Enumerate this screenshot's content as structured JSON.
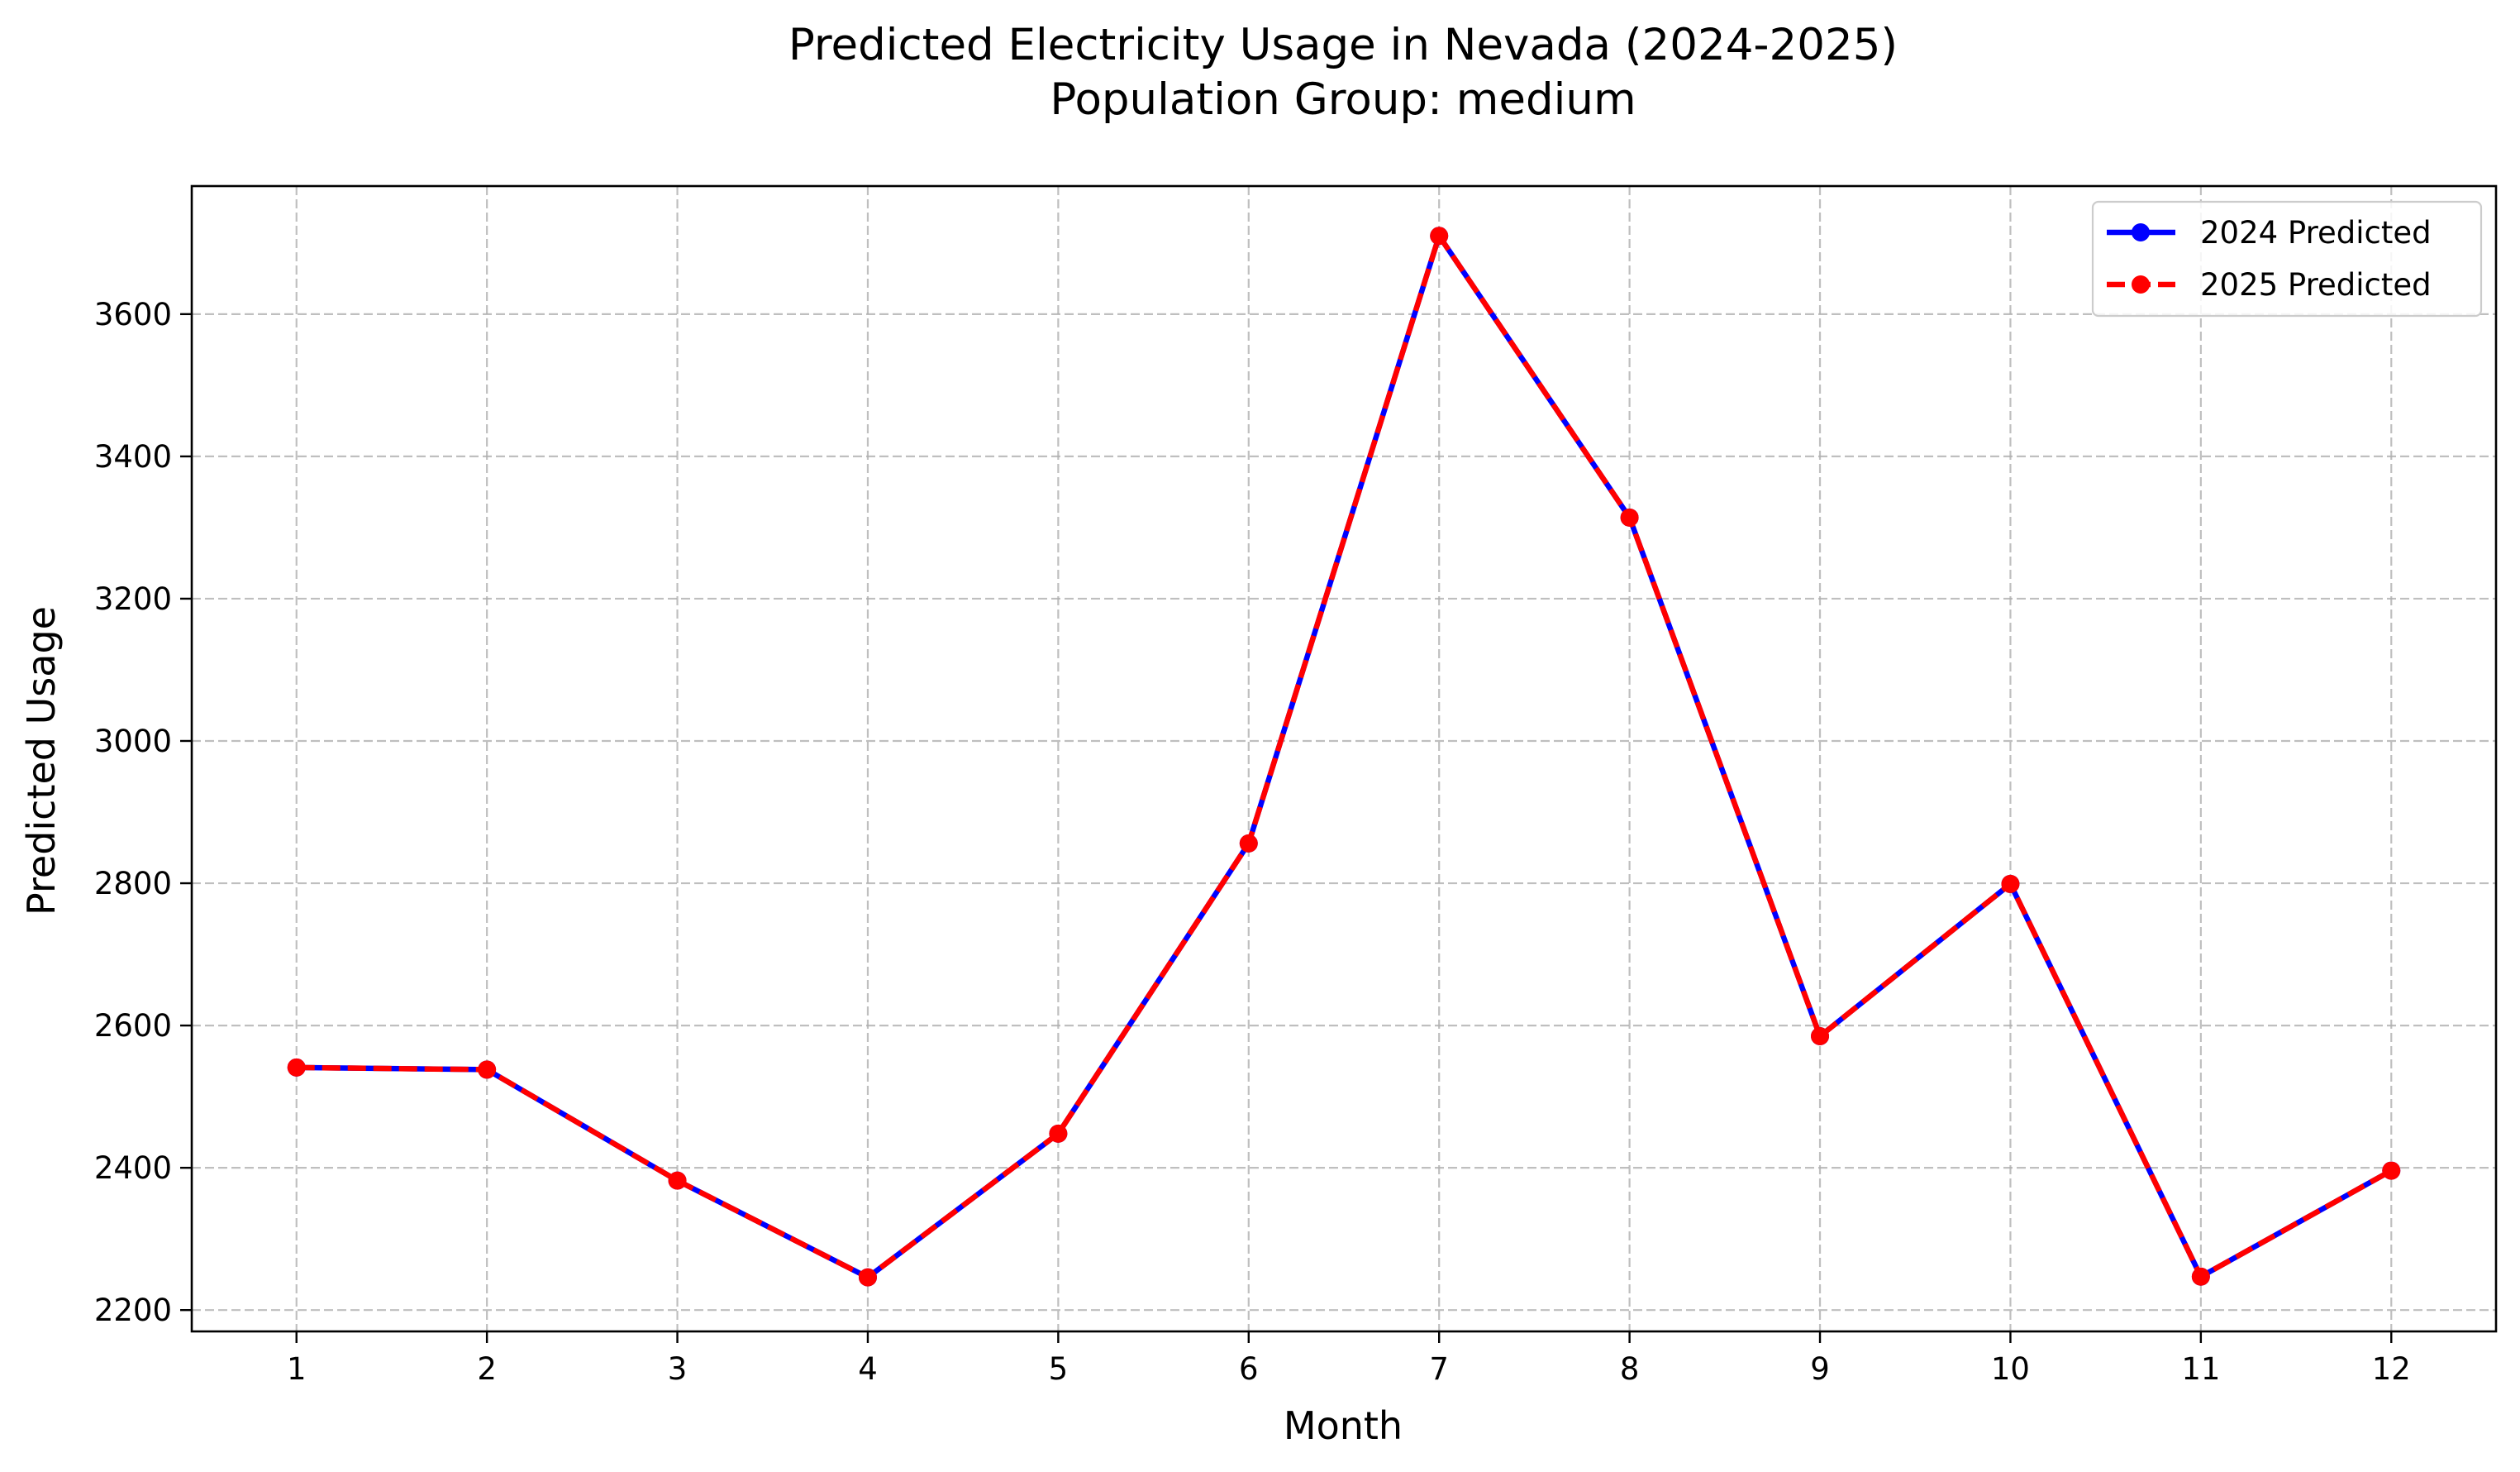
{
  "chart_data": {
    "type": "line",
    "title": "Predicted Electricity Usage in Nevada (2024-2025)",
    "subtitle": "Population Group: medium",
    "xlabel": "Month",
    "ylabel": "Predicted Usage",
    "x": [
      1,
      2,
      3,
      4,
      5,
      6,
      7,
      8,
      9,
      10,
      11,
      12
    ],
    "xlim": [
      0.45,
      12.55
    ],
    "ylim": [
      2170,
      3780
    ],
    "yticks": [
      2200,
      2400,
      2600,
      2800,
      3000,
      3200,
      3400,
      3600
    ],
    "grid": true,
    "grid_style": "dashed",
    "legend_position": "top-right",
    "series": [
      {
        "name": "2024 Predicted",
        "color": "#0000ff",
        "line_style": "solid",
        "marker": "circle",
        "values": [
          2541,
          2538,
          2382,
          2246,
          2448,
          2856,
          3710,
          3314,
          2585,
          2799,
          2247,
          2396
        ]
      },
      {
        "name": "2025 Predicted",
        "color": "#ff0000",
        "line_style": "dashed",
        "marker": "circle",
        "values": [
          2541,
          2538,
          2382,
          2246,
          2448,
          2856,
          3710,
          3314,
          2585,
          2799,
          2247,
          2396
        ]
      }
    ]
  }
}
